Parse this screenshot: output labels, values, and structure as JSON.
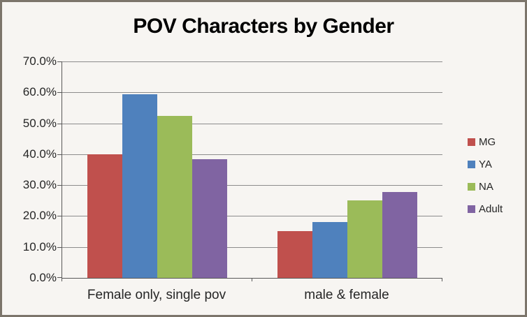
{
  "chart_data": {
    "type": "bar",
    "title": "POV Characters by Gender",
    "categories": [
      "Female only, single pov",
      "male & female"
    ],
    "series": [
      {
        "name": "MG",
        "color": "#C0504D",
        "values": [
          40.0,
          15.2
        ]
      },
      {
        "name": "YA",
        "color": "#4F81BD",
        "values": [
          59.5,
          18.0
        ]
      },
      {
        "name": "NA",
        "color": "#9BBB59",
        "values": [
          52.4,
          25.0
        ]
      },
      {
        "name": "Adult",
        "color": "#8064A2",
        "values": [
          38.5,
          27.8
        ]
      }
    ],
    "ylim": [
      0,
      70
    ],
    "yticks": [
      0,
      10,
      20,
      30,
      40,
      50,
      60,
      70
    ],
    "ytick_labels": [
      "0.0%",
      "10.0%",
      "20.0%",
      "30.0%",
      "40.0%",
      "50.0%",
      "60.0%",
      "70.0%"
    ],
    "ylabel": "",
    "xlabel": "",
    "grid": true,
    "legend_position": "right",
    "colors": {
      "background": "#F7F5F2",
      "frame_border": "#7C756B",
      "gridline": "#8C8C8C",
      "axis": "#595959",
      "text": "#262626",
      "title_text": "#000000"
    }
  }
}
